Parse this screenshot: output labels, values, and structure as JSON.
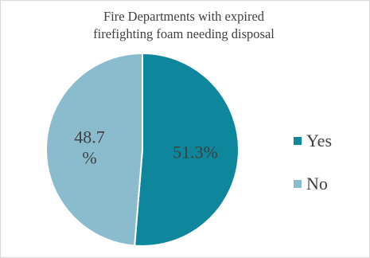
{
  "chart_data": {
    "type": "pie",
    "title_lines": [
      "Fire Departments with expired",
      "firefighting foam needing disposal"
    ],
    "categories": [
      "Yes",
      "No"
    ],
    "values": [
      51.3,
      48.7
    ],
    "slice_labels": [
      "51.3%",
      "48.7 %"
    ],
    "colors": [
      "#0e869b",
      "#8bbccd"
    ],
    "legend_position": "right",
    "start_angle_degrees": 0
  }
}
